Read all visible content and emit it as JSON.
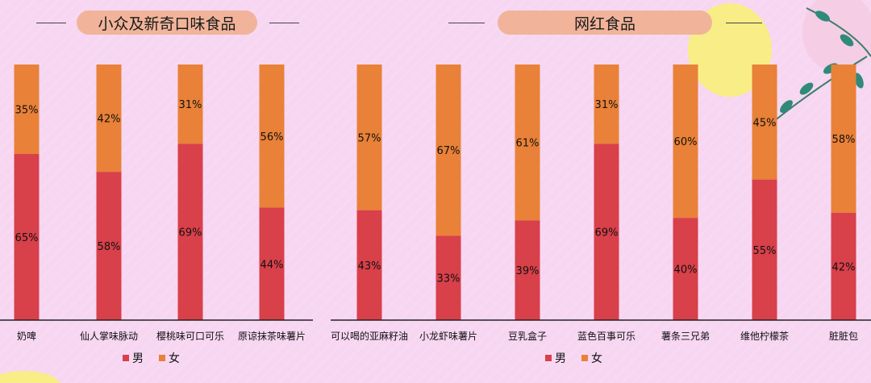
{
  "headers": {
    "left_title": "小众及新奇口味食品",
    "right_title": "网红食品"
  },
  "colors": {
    "male": "#d8404a",
    "female": "#e98138",
    "axis": "#222222"
  },
  "chart_data": [
    {
      "type": "bar",
      "title": "小众及新奇口味食品",
      "stacked": true,
      "percent": true,
      "categories": [
        "奶啤",
        "仙人掌味脉动",
        "樱桃味可口可乐",
        "原谅抹茶味薯片"
      ],
      "series": [
        {
          "name": "男",
          "values": [
            65,
            58,
            69,
            44
          ]
        },
        {
          "name": "女",
          "values": [
            35,
            42,
            31,
            56
          ]
        }
      ],
      "ylim": [
        0,
        100
      ],
      "legend": "bottom-center",
      "grid": false
    },
    {
      "type": "bar",
      "title": "网红食品",
      "stacked": true,
      "percent": true,
      "categories": [
        "可以喝的亚麻籽油",
        "小龙虾味薯片",
        "豆乳盒子",
        "蓝色百事可乐",
        "薯条三兄弟",
        "维他柠檬茶",
        "脏脏包"
      ],
      "series": [
        {
          "name": "男",
          "values": [
            43,
            33,
            39,
            69,
            40,
            55,
            42
          ]
        },
        {
          "name": "女",
          "values": [
            57,
            67,
            61,
            31,
            60,
            45,
            58
          ]
        }
      ],
      "ylim": [
        0,
        100
      ],
      "legend": "bottom-center",
      "grid": false
    }
  ]
}
